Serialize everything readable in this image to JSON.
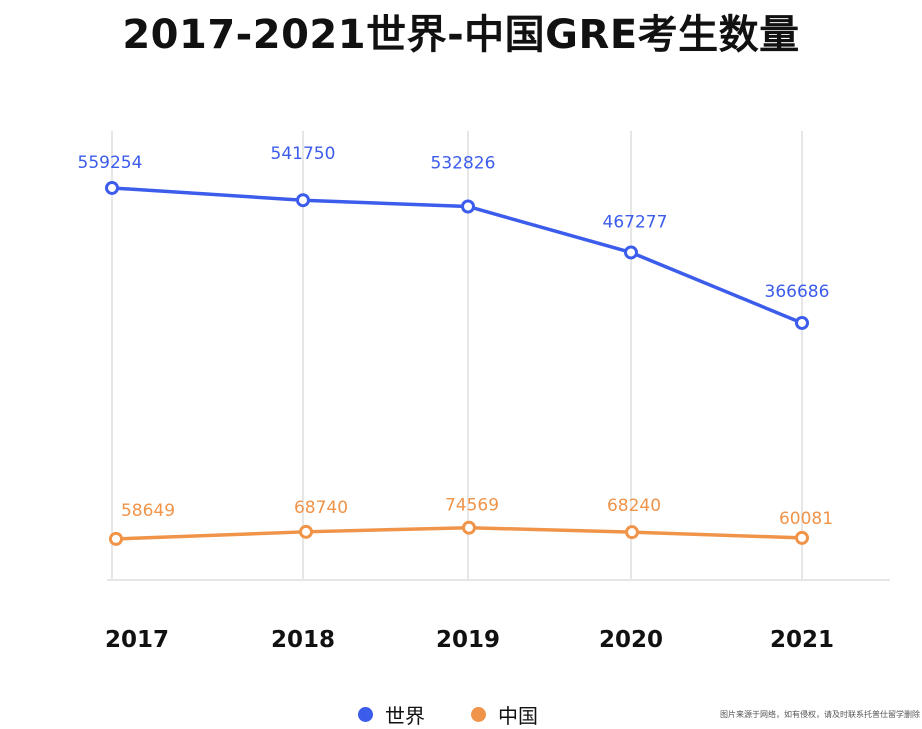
{
  "title": "2017-2021世界-中国GRE考生数量",
  "watermark": "图片来源于网络，如有侵权，请及时联系托普仕留学删除",
  "colors": {
    "world": "#3c5cec",
    "china": "#f0944a",
    "grid": "#e6e6e6"
  },
  "chart_data": {
    "type": "line",
    "title": "2017-2021世界-中国GRE考生数量",
    "categories": [
      "2017",
      "2018",
      "2019",
      "2020",
      "2021"
    ],
    "series": [
      {
        "name": "世界",
        "values": [
          559254,
          541750,
          532826,
          467277,
          366686
        ],
        "color": "#3c5cec"
      },
      {
        "name": "中国",
        "values": [
          58649,
          68740,
          74569,
          68240,
          60081
        ],
        "color": "#f0944a"
      }
    ],
    "ylim": [
      0,
      630000
    ],
    "grid": "vertical",
    "legend": "bottom-center"
  }
}
